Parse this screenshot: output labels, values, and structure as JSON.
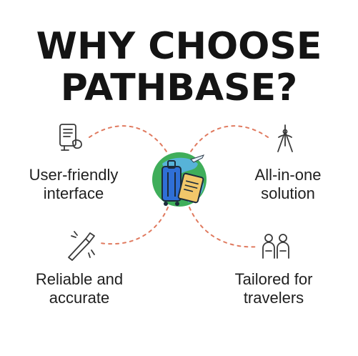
{
  "heading": {
    "line1": "WHY CHOOSE",
    "line2": "PATHBASE?"
  },
  "features": {
    "top_left": {
      "line1": "User-friendly",
      "line2": "interface",
      "icon": "document-checklist-icon"
    },
    "top_right": {
      "line1": "All-in-one",
      "line2": "solution",
      "icon": "compass-tool-icon"
    },
    "bottom_left": {
      "line1": "Reliable and",
      "line2": "accurate",
      "icon": "wrench-tool-icon"
    },
    "bottom_right": {
      "line1": "Tailored for",
      "line2": "travelers",
      "icon": "travelers-group-icon"
    }
  },
  "center": {
    "icon": "travel-luggage-globe-icon"
  },
  "colors": {
    "title": "#141414",
    "connector": "#e07a5f",
    "globe_green": "#3fae5a",
    "globe_blue": "#5ab4e6",
    "suitcase": "#2f6fd6",
    "ticket": "#f2c76a",
    "icon_stroke": "#3a3a3a"
  }
}
